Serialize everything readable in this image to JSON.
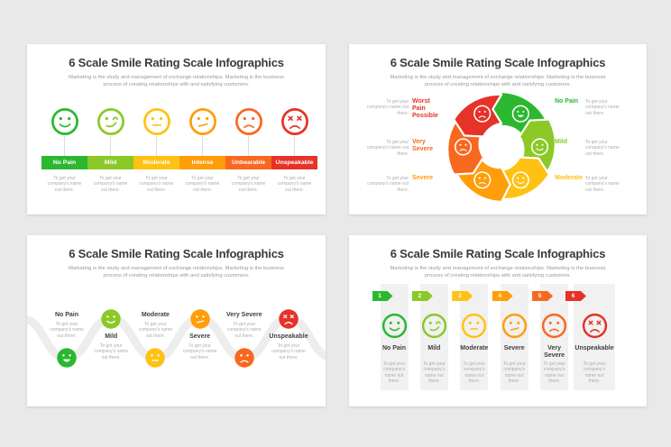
{
  "page": {
    "background": "#e9e9e9",
    "slide_background": "#ffffff"
  },
  "shared": {
    "title": "6 Scale Smile Rating Scale Infographics",
    "subtitle": "Marketing is the study and management of exchange relationships. Marketing is the business process of creating relationships with and satisfying customers.",
    "placeholder": "To get your company's name out there."
  },
  "palette": {
    "level1": "#2bb830",
    "level2": "#8bc927",
    "level3": "#ffc213",
    "level4": "#ff9d0a",
    "level5": "#f9681f",
    "level6": "#e63227",
    "title_text": "#3a3a3a",
    "subtitle_text": "#9a9a9a",
    "placeholder_text": "#adadad",
    "label_text": "#3f3f3f",
    "connector": "#dedede",
    "wave": "#ededed",
    "card": "#f1f1f1"
  },
  "slide1": {
    "items": [
      {
        "label": "No Pain",
        "face": "happy"
      },
      {
        "label": "Mild",
        "face": "smirk"
      },
      {
        "label": "Moderate",
        "face": "neutral"
      },
      {
        "label": "Intense",
        "face": "confused"
      },
      {
        "label": "Unbearable",
        "face": "sad"
      },
      {
        "label": "Unspeakable",
        "face": "angry"
      }
    ]
  },
  "slide2": {
    "left_items": [
      {
        "label": "Worst Pain Possible",
        "level": 6
      },
      {
        "label": "Very Severe",
        "level": 5
      },
      {
        "label": "Severe",
        "level": 4
      }
    ],
    "right_items": [
      {
        "label": "No Pain",
        "level": 1
      },
      {
        "label": "Mild",
        "level": 2
      },
      {
        "label": "Moderate",
        "level": 3
      }
    ],
    "segments": [
      {
        "level": 1,
        "face": "grin"
      },
      {
        "level": 2,
        "face": "happy"
      },
      {
        "level": 3,
        "face": "happy"
      },
      {
        "level": 4,
        "face": "sad"
      },
      {
        "level": 5,
        "face": "sad"
      },
      {
        "level": 6,
        "face": "sad"
      }
    ]
  },
  "slide3": {
    "items": [
      {
        "label": "No Pain",
        "face": "grin",
        "position": "bottom"
      },
      {
        "label": "Mild",
        "face": "happy",
        "position": "top"
      },
      {
        "label": "Moderate",
        "face": "neutral",
        "position": "bottom"
      },
      {
        "label": "Severe",
        "face": "confused",
        "position": "top"
      },
      {
        "label": "Very Severe",
        "face": "sad",
        "position": "bottom"
      },
      {
        "label": "Unspeakable",
        "face": "angry",
        "position": "top"
      }
    ]
  },
  "slide4": {
    "items": [
      {
        "number": "1",
        "label": "No Pain",
        "face": "happy"
      },
      {
        "number": "2",
        "label": "Mild",
        "face": "smirk"
      },
      {
        "number": "3",
        "label": "Moderate",
        "face": "neutral"
      },
      {
        "number": "4",
        "label": "Severe",
        "face": "confused"
      },
      {
        "number": "5",
        "label": "Very Severe",
        "face": "sad"
      },
      {
        "number": "6",
        "label": "Unspeakable",
        "face": "angry"
      }
    ]
  }
}
